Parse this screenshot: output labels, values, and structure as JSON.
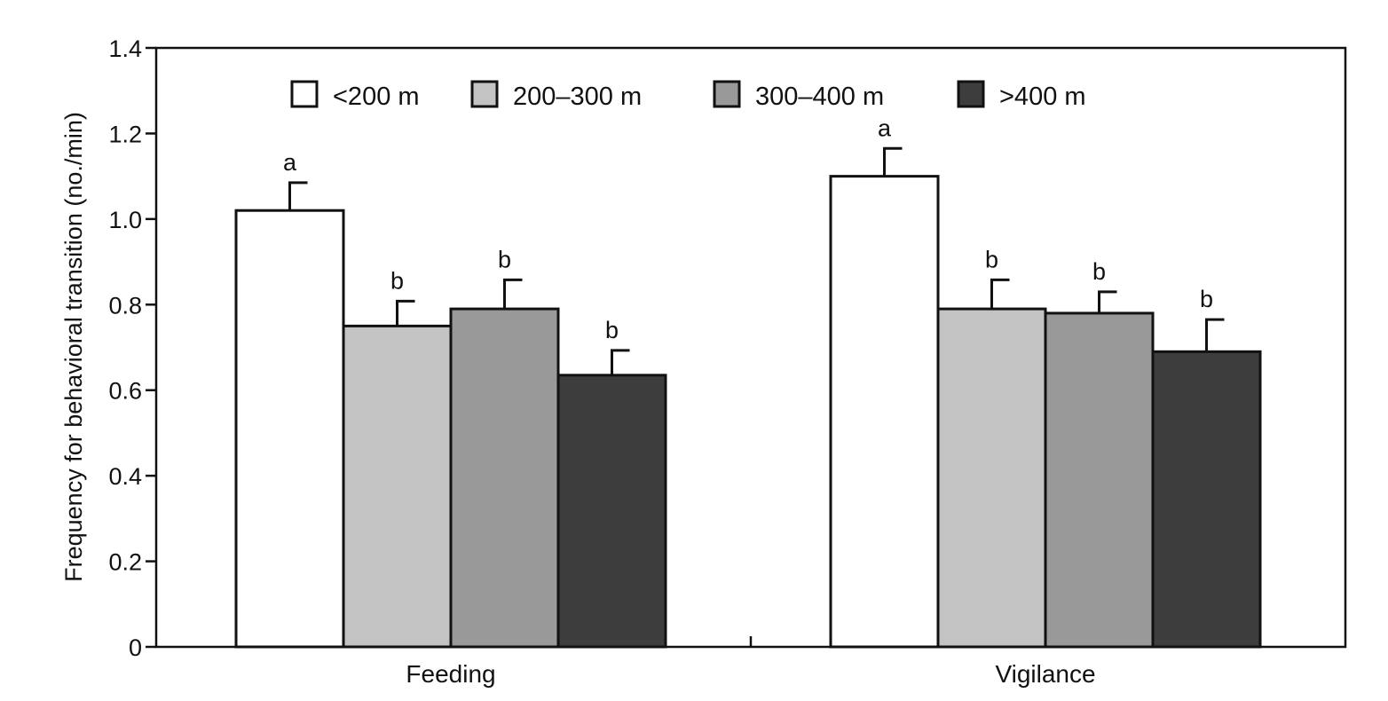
{
  "chart_data": {
    "type": "bar",
    "title": "",
    "xlabel": "",
    "ylabel": "Frequency for behavioral transition (no./min)",
    "ylim": [
      0,
      1.4
    ],
    "yticks": [
      0,
      0.2,
      0.4,
      0.6,
      0.8,
      1.0,
      1.2,
      1.4
    ],
    "ytick_labels": [
      "0",
      "0.2",
      "0.4",
      "0.6",
      "0.8",
      "1.0",
      "1.2",
      "1.4"
    ],
    "categories": [
      "Feeding",
      "Vigilance"
    ],
    "legend_position": "top",
    "grid": false,
    "series": [
      {
        "name": "<200 m",
        "color": "#ffffff",
        "values": [
          1.02,
          1.1
        ],
        "errors": [
          0.065,
          0.065
        ],
        "labels": [
          "a",
          "a"
        ]
      },
      {
        "name": "200–300 m",
        "color": "#c3c3c3",
        "values": [
          0.75,
          0.79
        ],
        "errors": [
          0.058,
          0.068
        ],
        "labels": [
          "b",
          "b"
        ]
      },
      {
        "name": "300–400 m",
        "color": "#999999",
        "values": [
          0.79,
          0.78
        ],
        "errors": [
          0.068,
          0.05
        ],
        "labels": [
          "b",
          "b"
        ]
      },
      {
        "name": ">400 m",
        "color": "#3d3d3d",
        "values": [
          0.635,
          0.69
        ],
        "errors": [
          0.058,
          0.075
        ],
        "labels": [
          "b",
          "b"
        ]
      }
    ]
  }
}
